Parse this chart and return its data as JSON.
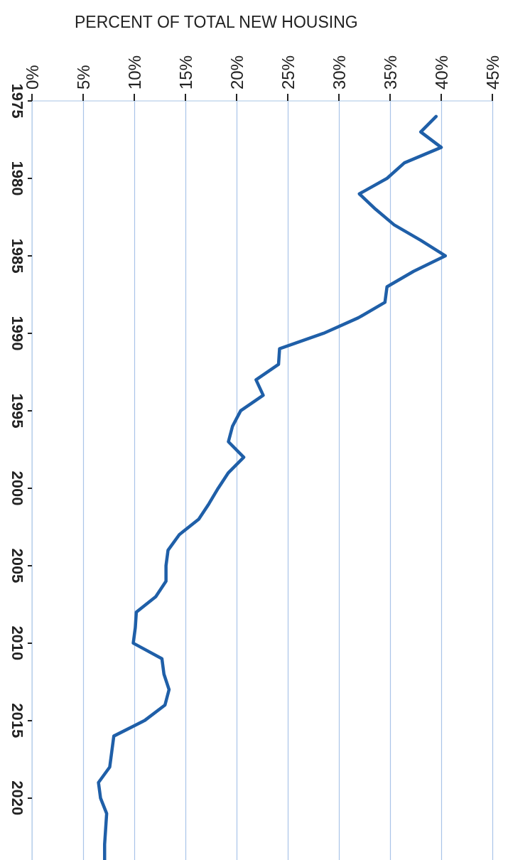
{
  "chart_data": {
    "type": "line",
    "xlabel": "PERCENT OF TOTAL NEW HOUSING",
    "series": [
      {
        "color": "#1f5fa8",
        "x": [
          39.5,
          38.0,
          40.0,
          36.4,
          34.7,
          32.0,
          33.6,
          35.4,
          38.0,
          40.4,
          37.3,
          34.7,
          34.5,
          31.9,
          28.5,
          24.2,
          24.1,
          21.9,
          22.6,
          20.4,
          19.6,
          19.2,
          20.7,
          19.2,
          18.2,
          17.3,
          16.3,
          14.4,
          13.3,
          13.1,
          13.1,
          12.1,
          10.2,
          10.1,
          9.9,
          12.7,
          12.9,
          13.4,
          13.0,
          11.0,
          8.0,
          7.8,
          7.6,
          6.5,
          6.7,
          7.3,
          7.2,
          7.1,
          7.1
        ],
        "values": [
          1976,
          1977,
          1978,
          1979,
          1980,
          1981,
          1982,
          1983,
          1984,
          1985,
          1986,
          1987,
          1988,
          1989,
          1990,
          1991,
          1992,
          1993,
          1994,
          1995,
          1996,
          1997,
          1998,
          1999,
          2000,
          2001,
          2002,
          2003,
          2004,
          2005,
          2006,
          2007,
          2008,
          2009,
          2010,
          2011,
          2012,
          2013,
          2014,
          2015,
          2016,
          2017,
          2018,
          2019,
          2020,
          2021,
          2022,
          2023,
          2024
        ]
      }
    ],
    "ylim": [
      2024,
      1975
    ],
    "yticks": [
      1975,
      1980,
      1985,
      1990,
      1995,
      2000,
      2005,
      2010,
      2015,
      2020
    ],
    "xlim": [
      0,
      45
    ],
    "xticks": [
      {
        "value": 0,
        "label": "0%"
      },
      {
        "value": 5,
        "label": "5%"
      },
      {
        "value": 10,
        "label": "10%"
      },
      {
        "value": 15,
        "label": "15%"
      },
      {
        "value": 20,
        "label": "20%"
      },
      {
        "value": 25,
        "label": "25%"
      },
      {
        "value": 30,
        "label": "30%"
      },
      {
        "value": 35,
        "label": "35%"
      },
      {
        "value": 40,
        "label": "40%"
      },
      {
        "value": 45,
        "label": "45%"
      }
    ],
    "grid": "x",
    "marker": "none",
    "line_style": "solid"
  }
}
